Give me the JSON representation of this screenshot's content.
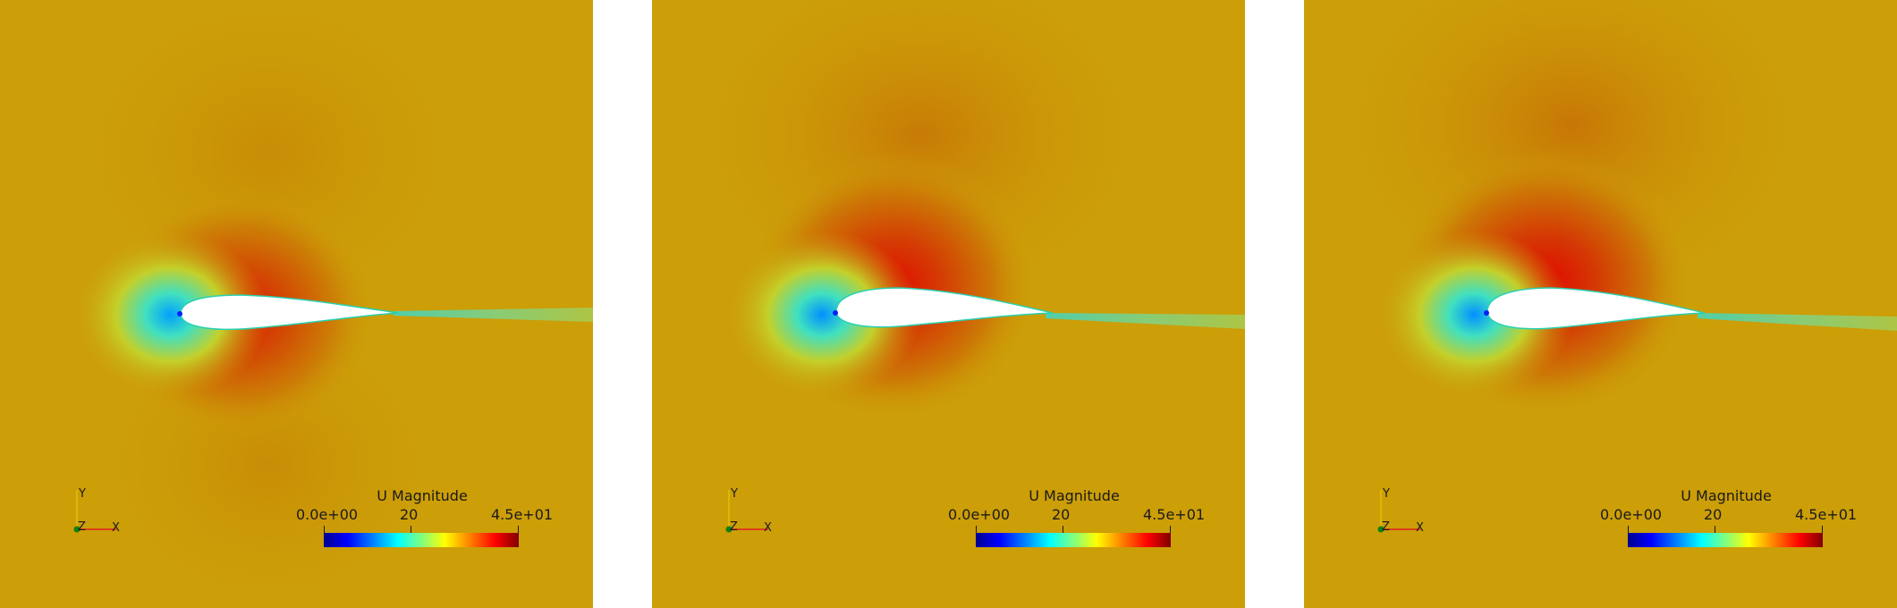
{
  "panels": [
    {
      "colorbar": {
        "title": "U Magnitude",
        "min_label": "0.0e+00",
        "mid_label": "20",
        "max_label": "4.5e+01"
      },
      "axes": {
        "x": "X",
        "y": "Y",
        "z": "Z"
      }
    },
    {
      "colorbar": {
        "title": "U Magnitude",
        "min_label": "0.0e+00",
        "mid_label": "20",
        "max_label": "4.5e+01"
      },
      "axes": {
        "x": "X",
        "y": "Y",
        "z": "Z"
      }
    },
    {
      "colorbar": {
        "title": "U Magnitude",
        "min_label": "0.0e+00",
        "mid_label": "20",
        "max_label": "4.5e+01"
      },
      "axes": {
        "x": "X",
        "y": "Y",
        "z": "Z"
      }
    }
  ],
  "colors": {
    "background_field": "#cc9e08",
    "panel_gap": "#ffffff"
  }
}
